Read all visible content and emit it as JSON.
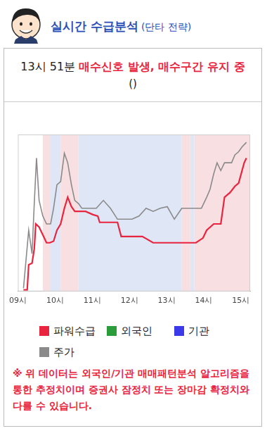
{
  "header": {
    "title": "실시간 수급분석",
    "subtitle": "(단타 전략)"
  },
  "signal": {
    "time": "13시 51분",
    "message": "매수신호 발생, 매수구간 유지 중",
    "detail": "()"
  },
  "chart_data": {
    "type": "line",
    "xlim": [
      9,
      15.25
    ],
    "xticks": [
      {
        "value": 9,
        "label": "09시"
      },
      {
        "value": 10,
        "label": "10시"
      },
      {
        "value": 11,
        "label": "11시"
      },
      {
        "value": 12,
        "label": "12시"
      },
      {
        "value": 13,
        "label": "13시"
      },
      {
        "value": 14,
        "label": "14시"
      },
      {
        "value": 15,
        "label": "15시"
      }
    ],
    "ylim": [
      0,
      100
    ],
    "tick_labels": "x",
    "grid": false,
    "legend": "bottom",
    "bands": [
      {
        "start": 9.67,
        "end": 9.86,
        "color": "#f8dfe2"
      },
      {
        "start": 9.86,
        "end": 10.15,
        "color": "#dfe6f6"
      },
      {
        "start": 10.15,
        "end": 10.63,
        "color": "#f8dfe2"
      },
      {
        "start": 10.63,
        "end": 13.41,
        "color": "#dfe6f6"
      },
      {
        "start": 13.41,
        "end": 13.64,
        "color": "#f8dfe2"
      },
      {
        "start": 13.64,
        "end": 13.75,
        "color": "#dfe6f6"
      },
      {
        "start": 13.75,
        "end": 15.25,
        "color": "#f8dfe2"
      }
    ],
    "series": [
      {
        "name": "파워수급",
        "color": "#e8243f",
        "x": [
          9.15,
          9.25,
          9.29,
          9.38,
          9.44,
          9.48,
          9.57,
          9.67,
          9.77,
          9.86,
          9.96,
          10.05,
          10.15,
          10.25,
          10.34,
          10.44,
          10.53,
          10.82,
          11.01,
          11.15,
          11.2,
          11.68,
          11.78,
          12.35,
          12.64,
          13.79,
          13.98,
          14.08,
          14.27,
          14.46,
          14.56,
          14.71,
          14.84,
          14.94,
          15.09,
          15.15
        ],
        "values": [
          1,
          1,
          17,
          18,
          27,
          43,
          41,
          36,
          31,
          31,
          32,
          39,
          43,
          53,
          60,
          54,
          51,
          51,
          49,
          48,
          44,
          44,
          35,
          35,
          31,
          31,
          34,
          39,
          43,
          43,
          60,
          63,
          67,
          69,
          82,
          85
        ]
      },
      {
        "name": "외국인",
        "color": "#2a9d3a",
        "x": [],
        "values": []
      },
      {
        "name": "기관",
        "color": "#3a3ae8",
        "x": [],
        "values": []
      },
      {
        "name": "주가",
        "color": "#8a8a8a",
        "x": [
          9.15,
          9.29,
          9.38,
          9.44,
          9.5,
          9.57,
          9.67,
          9.77,
          9.88,
          9.96,
          10.05,
          10.15,
          10.25,
          10.34,
          10.44,
          10.53,
          10.63,
          10.72,
          10.92,
          11.11,
          11.3,
          11.49,
          11.68,
          11.87,
          12.07,
          12.26,
          12.45,
          12.64,
          12.83,
          13.02,
          13.21,
          13.41,
          13.6,
          13.79,
          13.94,
          14.08,
          14.17,
          14.27,
          14.36,
          14.46,
          14.56,
          14.65,
          14.75,
          14.84,
          14.94,
          15.03,
          15.15
        ],
        "values": [
          2,
          39,
          24,
          56,
          85,
          58,
          48,
          43,
          43,
          53,
          68,
          70,
          88,
          82,
          68,
          58,
          56,
          53,
          53,
          53,
          58,
          53,
          46,
          46,
          46,
          48,
          53,
          51,
          53,
          54,
          46,
          53,
          53,
          53,
          53,
          60,
          65,
          75,
          82,
          77,
          82,
          82,
          82,
          87,
          89,
          92,
          95
        ]
      }
    ]
  },
  "note": "※ 위 데이터는 외국인/기관 매매패턴분석 알고리즘을 통한 추정치이며 증권사 잠정치 또는 장마감 확정치와 다를 수 있습니다."
}
